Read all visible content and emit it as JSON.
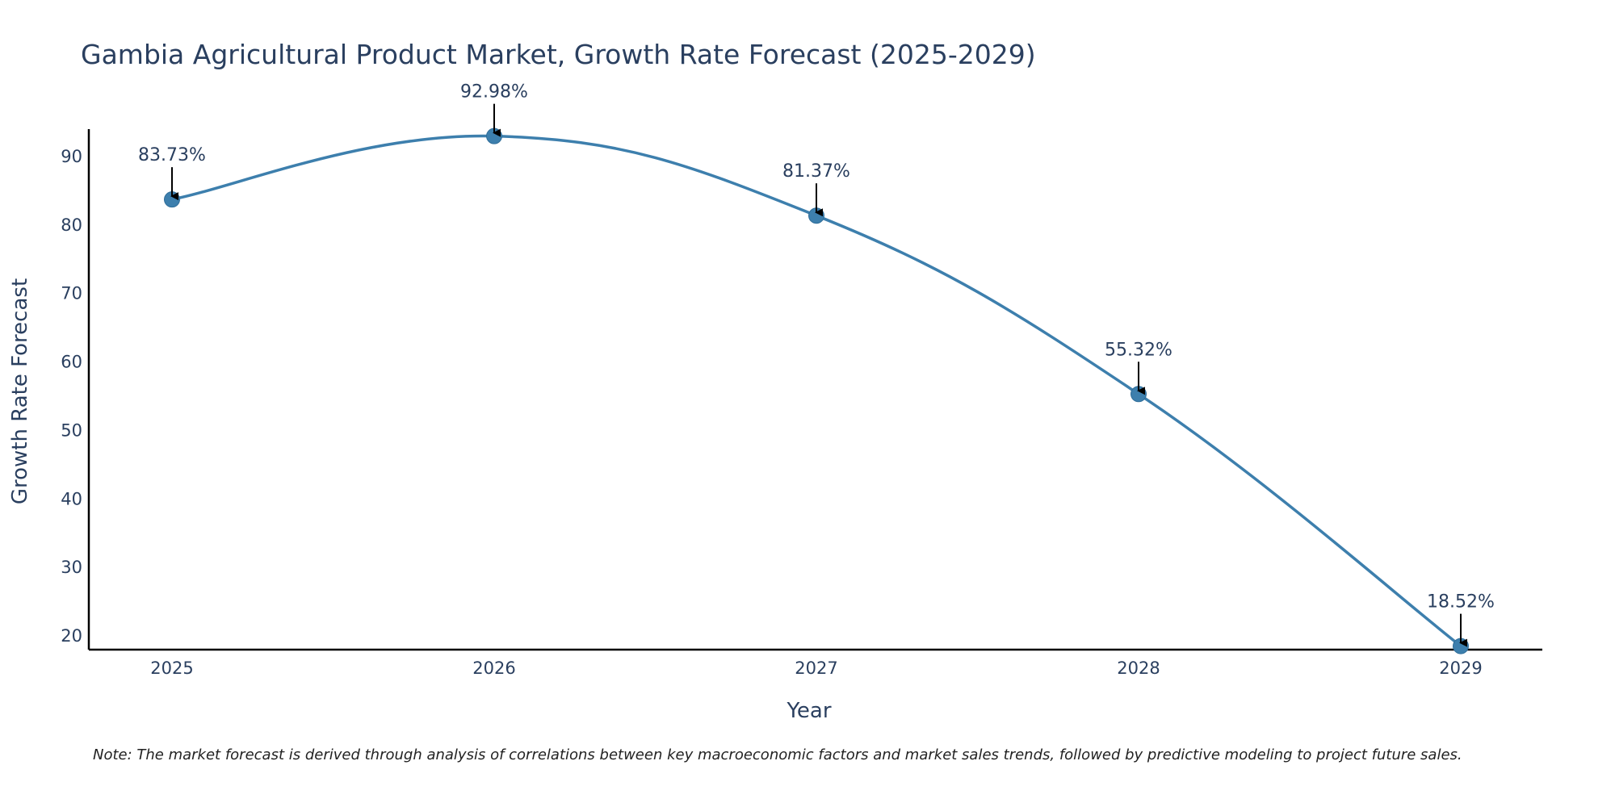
{
  "chart_data": {
    "type": "line",
    "title": "Gambia Agricultural Product Market, Growth Rate Forecast (2025-2029)",
    "xlabel": "Year",
    "ylabel": "Growth Rate Forecast",
    "categories": [
      "2025",
      "2026",
      "2027",
      "2028",
      "2029"
    ],
    "series": [
      {
        "name": "Growth Rate Forecast",
        "values": [
          83.73,
          92.98,
          81.37,
          55.32,
          18.52
        ],
        "labels": [
          "83.73%",
          "92.98%",
          "81.37%",
          "55.32%",
          "18.52%"
        ]
      }
    ],
    "ylim": [
      18,
      94
    ],
    "yticks": [
      20,
      30,
      40,
      50,
      60,
      70,
      80,
      90
    ],
    "grid": false,
    "line_shape": "spline",
    "note": "Note: The market forecast is derived through analysis of correlations between key macroeconomic factors and market sales trends, followed by predictive modeling to project future sales."
  },
  "colors": {
    "line": "#3d7fad",
    "marker": "#3d7fad",
    "text": "#2a3f5f",
    "axis": "#000000",
    "arrow": "#000000"
  }
}
